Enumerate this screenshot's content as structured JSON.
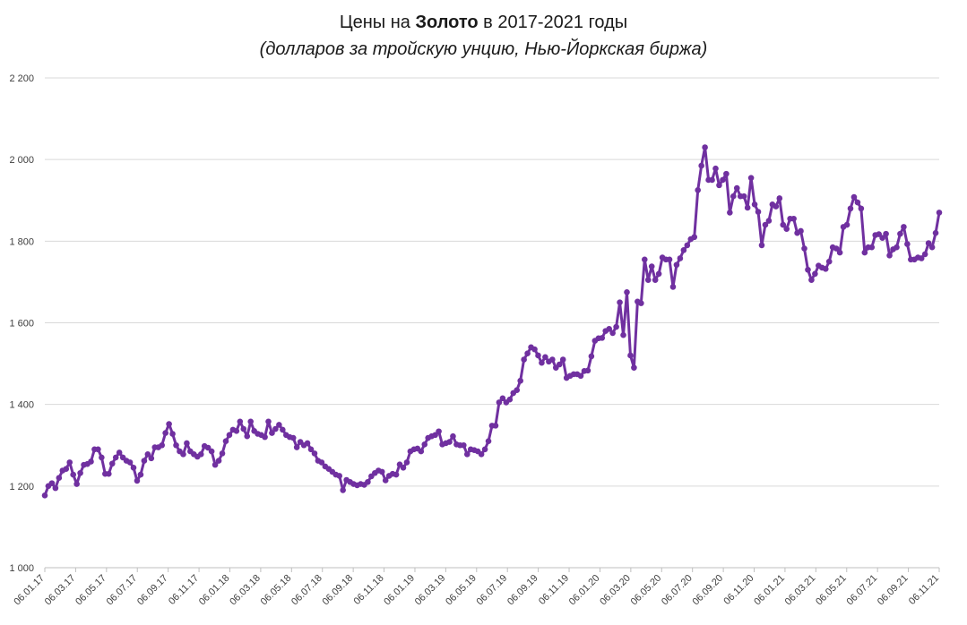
{
  "title": {
    "prefix": "Цены на ",
    "bold": "Золото",
    "suffix": " в 2017-2021 годы",
    "subtitle": "(долларов за тройскую унцию, Нью-Йоркская биржа)"
  },
  "chart_data": {
    "type": "line",
    "ylim": [
      1000,
      2200
    ],
    "yticks": [
      1000,
      1200,
      1400,
      1600,
      1800,
      2000,
      2200
    ],
    "ytick_labels": [
      "1 000",
      "1 200",
      "1 400",
      "1 600",
      "1 800",
      "2 000",
      "2 200"
    ],
    "xtick_labels": [
      "06.01.17",
      "06.03.17",
      "06.05.17",
      "06.07.17",
      "06.09.17",
      "06.11.17",
      "06.01.18",
      "06.03.18",
      "06.05.18",
      "06.07.18",
      "06.09.18",
      "06.11.18",
      "06.01.19",
      "06.03.19",
      "06.05.19",
      "06.07.19",
      "06.09.19",
      "06.11.19",
      "06.01.20",
      "06.03.20",
      "06.05.20",
      "06.07.20",
      "06.09.20",
      "06.11.20",
      "06.01.21",
      "06.03.21",
      "06.05.21",
      "06.07.21",
      "06.09.21",
      "06.11.21"
    ],
    "grid": true,
    "line_color": "#7030a0",
    "series": [
      {
        "values": [
          1177,
          1200,
          1207,
          1195,
          1220,
          1238,
          1242,
          1258,
          1228,
          1205,
          1232,
          1252,
          1254,
          1260,
          1290,
          1290,
          1270,
          1230,
          1230,
          1255,
          1270,
          1282,
          1270,
          1262,
          1258,
          1245,
          1213,
          1228,
          1262,
          1278,
          1268,
          1295,
          1295,
          1300,
          1330,
          1352,
          1328,
          1300,
          1285,
          1278,
          1305,
          1285,
          1278,
          1272,
          1278,
          1298,
          1294,
          1285,
          1252,
          1262,
          1280,
          1310,
          1325,
          1338,
          1335,
          1358,
          1340,
          1322,
          1358,
          1335,
          1328,
          1325,
          1320,
          1358,
          1330,
          1340,
          1350,
          1338,
          1325,
          1320,
          1318,
          1295,
          1308,
          1300,
          1305,
          1290,
          1280,
          1262,
          1258,
          1248,
          1242,
          1235,
          1228,
          1225,
          1190,
          1215,
          1210,
          1205,
          1202,
          1205,
          1203,
          1210,
          1224,
          1232,
          1238,
          1235,
          1214,
          1225,
          1230,
          1228,
          1253,
          1245,
          1258,
          1285,
          1290,
          1292,
          1285,
          1302,
          1318,
          1322,
          1325,
          1334,
          1302,
          1305,
          1308,
          1322,
          1302,
          1300,
          1300,
          1278,
          1290,
          1288,
          1285,
          1278,
          1290,
          1310,
          1348,
          1348,
          1405,
          1415,
          1405,
          1412,
          1428,
          1435,
          1458,
          1510,
          1525,
          1540,
          1535,
          1520,
          1502,
          1516,
          1505,
          1510,
          1490,
          1498,
          1510,
          1465,
          1470,
          1474,
          1474,
          1470,
          1482,
          1483,
          1518,
          1556,
          1562,
          1563,
          1580,
          1585,
          1575,
          1590,
          1650,
          1570,
          1675,
          1520,
          1490,
          1652,
          1648,
          1755,
          1705,
          1738,
          1705,
          1720,
          1760,
          1755,
          1755,
          1688,
          1742,
          1758,
          1778,
          1790,
          1805,
          1810,
          1925,
          1985,
          2030,
          1950,
          1950,
          1978,
          1937,
          1950,
          1965,
          1870,
          1910,
          1930,
          1910,
          1910,
          1882,
          1955,
          1890,
          1872,
          1790,
          1840,
          1850,
          1890,
          1885,
          1905,
          1840,
          1830,
          1855,
          1855,
          1820,
          1825,
          1782,
          1730,
          1705,
          1720,
          1740,
          1735,
          1732,
          1750,
          1785,
          1782,
          1772,
          1835,
          1840,
          1880,
          1908,
          1895,
          1880,
          1772,
          1785,
          1785,
          1815,
          1817,
          1808,
          1818,
          1765,
          1780,
          1785,
          1818,
          1835,
          1793,
          1755,
          1755,
          1760,
          1758,
          1768,
          1795,
          1785,
          1820,
          1870
        ]
      }
    ]
  }
}
